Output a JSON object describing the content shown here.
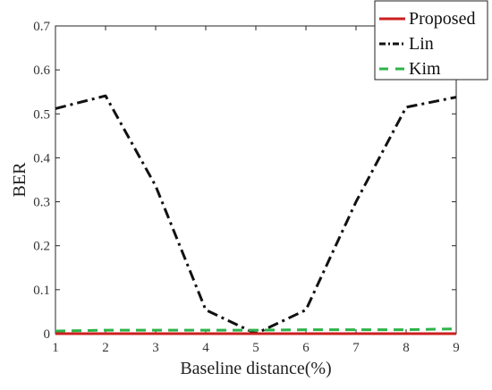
{
  "chart_data": {
    "type": "line",
    "xlabel": "Baseline distance(%)",
    "ylabel": "BER",
    "xlim": [
      1,
      9
    ],
    "ylim": [
      0,
      0.7
    ],
    "x_ticks": [
      1,
      2,
      3,
      4,
      5,
      6,
      7,
      8,
      9
    ],
    "y_ticks": [
      0,
      0.1,
      0.2,
      0.3,
      0.4,
      0.5,
      0.6,
      0.7
    ],
    "grid": false,
    "legend_position": "top-right",
    "x": [
      1,
      2,
      3,
      4,
      5,
      6,
      7,
      8,
      9
    ],
    "series": [
      {
        "name": "Proposed",
        "color": "#cc1f1f",
        "style": "solid",
        "values": [
          0.0,
          0.0,
          0.0,
          0.0,
          0.0,
          0.0,
          0.0,
          0.0,
          0.0
        ]
      },
      {
        "name": "Lin",
        "color": "#111111",
        "style": "dash-dot",
        "values": [
          0.512,
          0.541,
          0.336,
          0.054,
          0.0,
          0.054,
          0.3,
          0.515,
          0.538
        ]
      },
      {
        "name": "Kim",
        "color": "#2db34a",
        "style": "dashed",
        "values": [
          0.006,
          0.008,
          0.008,
          0.008,
          0.008,
          0.009,
          0.009,
          0.009,
          0.011
        ]
      }
    ]
  }
}
